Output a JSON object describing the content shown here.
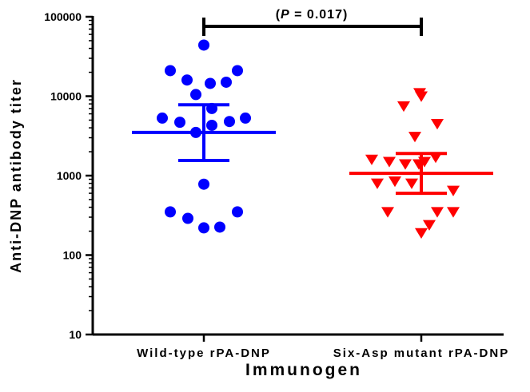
{
  "chart_data": {
    "type": "scatter",
    "yscale": "log",
    "ylim": [
      10,
      100000
    ],
    "yticks": [
      "10",
      "100",
      "1000",
      "10000",
      "100000"
    ],
    "ytick_values": [
      10,
      100,
      1000,
      10000,
      100000
    ],
    "ylabel": "Anti-DNP antibody titer",
    "xlabel": "Immunogen",
    "categories": [
      "Wild-type rPA-DNP",
      "Six-Asp mutant rPA-DNP"
    ],
    "series": [
      {
        "category": "Wild-type rPA-DNP",
        "marker": "circle",
        "color": "#0000ff",
        "values": [
          44000,
          21000,
          16000,
          14500,
          15000,
          21000,
          10500,
          7000,
          5300,
          4700,
          4300,
          3500,
          4800,
          5300,
          780,
          350,
          290,
          220,
          225,
          350
        ],
        "center": 3500,
        "error_low": 1550,
        "error_high": 7800
      },
      {
        "category": "Six-Asp mutant rPA-DNP",
        "marker": "triangle-down",
        "color": "#ff0000",
        "values": [
          10000,
          7500,
          11000,
          4500,
          3100,
          1600,
          1500,
          1400,
          1400,
          1500,
          1700,
          800,
          850,
          800,
          650,
          350,
          350,
          350,
          190,
          240
        ],
        "center": 1070,
        "error_low": 600,
        "error_high": 1900
      }
    ],
    "annotation": {
      "text_open": "(",
      "text_p": "P",
      "text_rest": " = 0.017)"
    },
    "grid": false,
    "legend": "none"
  }
}
